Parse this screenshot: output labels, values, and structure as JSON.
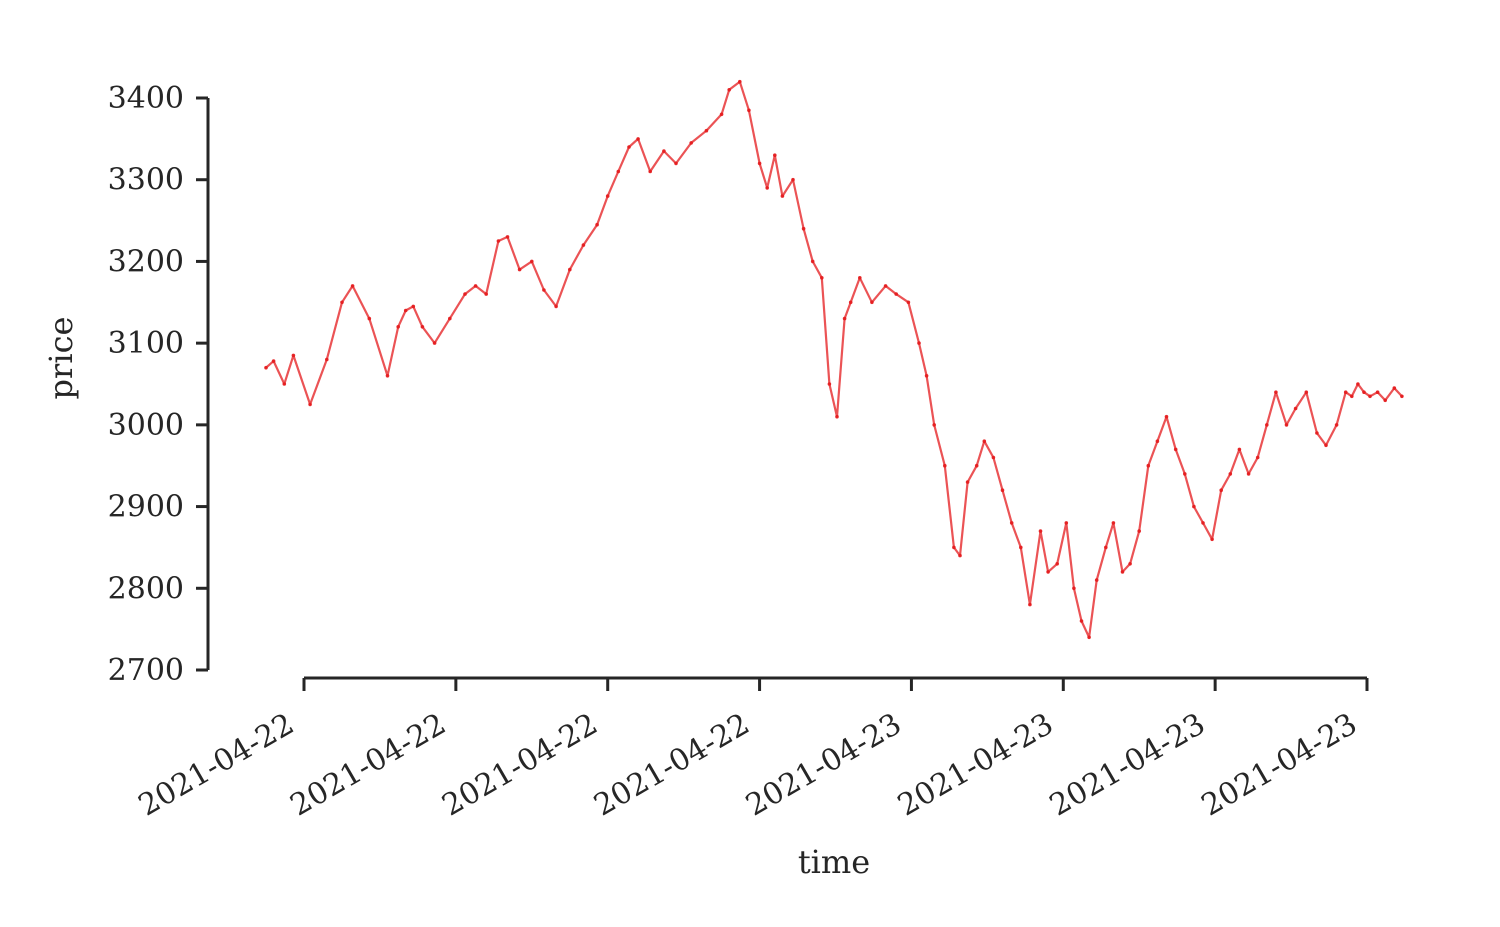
{
  "chart_data": {
    "type": "line",
    "title": "",
    "xlabel": "time",
    "ylabel": "price",
    "ylim": [
      2700,
      3400
    ],
    "yticks": [
      2700,
      2800,
      2900,
      3000,
      3100,
      3200,
      3300,
      3400
    ],
    "xlim": [
      -0.63,
      7.32
    ],
    "xticks": [
      0,
      1,
      2,
      3,
      4,
      5,
      6,
      7
    ],
    "xtick_labels": [
      "2021-04-22",
      "2021-04-22",
      "2021-04-22",
      "2021-04-22",
      "2021-04-23",
      "2021-04-23",
      "2021-04-23",
      "2021-04-23"
    ],
    "grid": false,
    "series": [
      {
        "name": "price",
        "color": "#e41a1c",
        "x": [
          -0.25,
          -0.2,
          -0.13,
          -0.07,
          0.04,
          0.15,
          0.25,
          0.32,
          0.43,
          0.55,
          0.62,
          0.67,
          0.72,
          0.78,
          0.86,
          0.96,
          1.06,
          1.13,
          1.2,
          1.28,
          1.34,
          1.42,
          1.5,
          1.58,
          1.66,
          1.75,
          1.84,
          1.93,
          2.0,
          2.07,
          2.14,
          2.2,
          2.28,
          2.37,
          2.45,
          2.55,
          2.65,
          2.75,
          2.8,
          2.87,
          2.93,
          3.0,
          3.05,
          3.1,
          3.15,
          3.22,
          3.29,
          3.35,
          3.41,
          3.46,
          3.51,
          3.56,
          3.6,
          3.66,
          3.74,
          3.83,
          3.9,
          3.98,
          4.05,
          4.1,
          4.15,
          4.22,
          4.28,
          4.32,
          4.37,
          4.43,
          4.48,
          4.54,
          4.6,
          4.66,
          4.72,
          4.78,
          4.85,
          4.9,
          4.96,
          5.02,
          5.07,
          5.12,
          5.17,
          5.22,
          5.28,
          5.33,
          5.39,
          5.44,
          5.5,
          5.56,
          5.62,
          5.68,
          5.74,
          5.8,
          5.86,
          5.92,
          5.98,
          6.04,
          6.1,
          6.16,
          6.22,
          6.28,
          6.34,
          6.4,
          6.47,
          6.53,
          6.6,
          6.67,
          6.73,
          6.8,
          6.86,
          6.9,
          6.94,
          6.98,
          7.02,
          7.07,
          7.12,
          7.18,
          7.23
        ],
        "values": [
          3070,
          3078,
          3050,
          3085,
          3025,
          3080,
          3150,
          3170,
          3130,
          3060,
          3120,
          3140,
          3145,
          3120,
          3100,
          3130,
          3160,
          3170,
          3160,
          3225,
          3230,
          3190,
          3200,
          3165,
          3145,
          3190,
          3220,
          3245,
          3280,
          3310,
          3340,
          3350,
          3310,
          3335,
          3320,
          3345,
          3360,
          3380,
          3410,
          3420,
          3385,
          3320,
          3290,
          3330,
          3280,
          3300,
          3240,
          3200,
          3180,
          3050,
          3010,
          3130,
          3150,
          3180,
          3150,
          3170,
          3160,
          3150,
          3100,
          3060,
          3000,
          2950,
          2850,
          2840,
          2930,
          2950,
          2980,
          2960,
          2920,
          2880,
          2850,
          2780,
          2870,
          2820,
          2830,
          2880,
          2800,
          2760,
          2740,
          2810,
          2850,
          2880,
          2820,
          2830,
          2870,
          2950,
          2980,
          3010,
          2970,
          2940,
          2900,
          2880,
          2860,
          2920,
          2940,
          2970,
          2940,
          2960,
          3000,
          3040,
          3000,
          3020,
          3040,
          2990,
          2975,
          3000,
          3040,
          3035,
          3050,
          3040,
          3035,
          3040,
          3030,
          3045,
          3035
        ]
      }
    ]
  }
}
